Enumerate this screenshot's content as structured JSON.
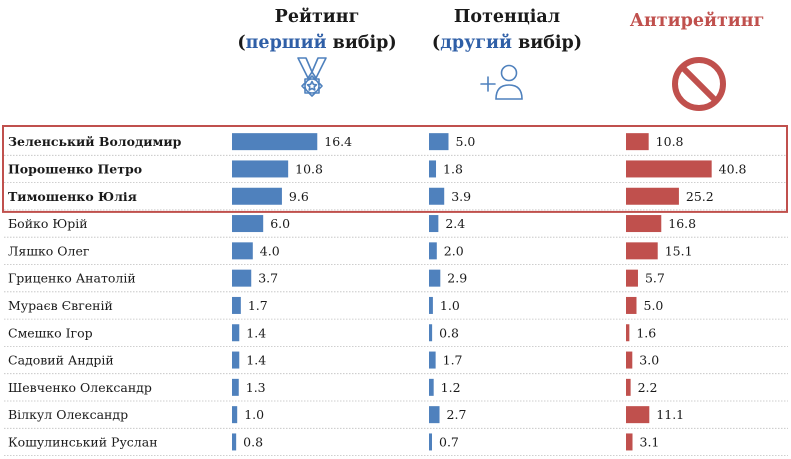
{
  "header": {
    "rating_title": "Рейтинг",
    "rating_open": "(",
    "rating_sub_colored": "перший",
    "rating_sub_rest": " вибір)",
    "potential_title": "Потенціал",
    "potential_open": "(",
    "potential_sub_colored": "другий",
    "potential_sub_rest": " вибір)",
    "anti_title": "Антирейтинг"
  },
  "icons": {
    "rating": "medal-icon",
    "potential": "add-user-icon",
    "anti": "prohibited-icon"
  },
  "colors": {
    "blue": "#4f81bd",
    "red": "#c0504d",
    "highlight_border": "#c0504d",
    "title_blue": "#2f5fa7"
  },
  "chart_data": {
    "type": "bar",
    "orientation": "horizontal",
    "categories": [
      "Зеленський Володимир",
      "Порошенко Петро",
      "Тимошенко Юлія",
      "Бойко Юрій",
      "Ляшко Олег",
      "Гриценко Анатолій",
      "Мураєв Євгеній",
      "Смешко Ігор",
      "Садовий Андрій",
      "Шевченко Олександр",
      "Вілкул Олександр",
      "Кошулинський Руслан"
    ],
    "highlighted": [
      0,
      1,
      2
    ],
    "series": [
      {
        "name": "Рейтинг (перший вибір)",
        "color": "#4f81bd",
        "values": [
          16.4,
          10.8,
          9.6,
          6.0,
          4.0,
          3.7,
          1.7,
          1.4,
          1.4,
          1.3,
          1.0,
          0.8
        ]
      },
      {
        "name": "Потенціал (другий вибір)",
        "color": "#4f81bd",
        "values": [
          5.0,
          1.8,
          3.9,
          2.4,
          2.0,
          2.9,
          1.0,
          0.8,
          1.7,
          1.2,
          2.7,
          0.7
        ]
      },
      {
        "name": "Антирейтинг",
        "color": "#c0504d",
        "values": [
          10.8,
          40.8,
          25.2,
          16.8,
          15.1,
          5.7,
          5.0,
          1.6,
          3.0,
          2.2,
          11.1,
          3.1
        ]
      }
    ],
    "value_labels": [
      [
        "16.4",
        "10.8",
        "9.6",
        "6.0",
        "4.0",
        "3.7",
        "1.7",
        "1.4",
        "1.4",
        "1.3",
        "1.0",
        "0.8"
      ],
      [
        "5.0",
        "1.8",
        "3.9",
        "2.4",
        "2.0",
        "2.9",
        "1.0",
        "0.8",
        "1.7",
        "1.2",
        "2.7",
        "0.7"
      ],
      [
        "10.8",
        "40.8",
        "25.2",
        "16.8",
        "15.1",
        "5.7",
        "5.0",
        "1.6",
        "3.0",
        "2.2",
        "11.1",
        "3.1"
      ]
    ],
    "grid": false,
    "legend": "none"
  }
}
